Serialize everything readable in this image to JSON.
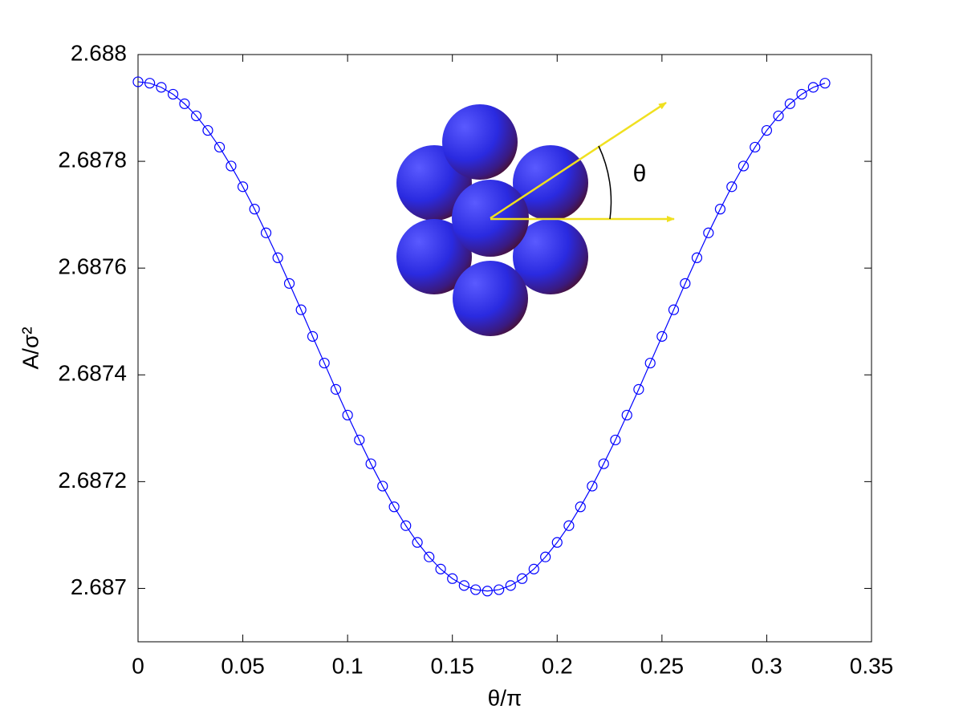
{
  "chart_data": {
    "type": "line",
    "xlabel": "θ/π",
    "ylabel": "A/σ²",
    "annotation": "θ",
    "color": "#0000ff",
    "marker": "circle",
    "xlim": [
      0,
      0.35
    ],
    "xticks": [
      0,
      0.05,
      0.1,
      0.15,
      0.2,
      0.25,
      0.3,
      0.35
    ],
    "ylim": [
      2.6869,
      2.688
    ],
    "yticks": [
      2.687,
      2.6872,
      2.6874,
      2.6876,
      2.6878,
      2.688
    ],
    "x": [
      0,
      0.0056,
      0.0111,
      0.0167,
      0.0222,
      0.0278,
      0.0333,
      0.0389,
      0.0444,
      0.05,
      0.0556,
      0.0611,
      0.0667,
      0.0722,
      0.0778,
      0.0833,
      0.0889,
      0.0944,
      0.1,
      0.1056,
      0.1111,
      0.1167,
      0.1222,
      0.1278,
      0.1333,
      0.1389,
      0.1444,
      0.15,
      0.1556,
      0.1611,
      0.1667,
      0.1722,
      0.1778,
      0.1833,
      0.1889,
      0.1944,
      0.2,
      0.2056,
      0.2111,
      0.2167,
      0.2222,
      0.2278,
      0.2333,
      0.2389,
      0.2444,
      0.25,
      0.2556,
      0.2611,
      0.2667,
      0.2722,
      0.2778,
      0.2833,
      0.2889,
      0.2944,
      0.3,
      0.3056,
      0.3111,
      0.3167,
      0.3222,
      0.3278
    ],
    "values": [
      2.687949,
      2.6879464,
      2.6879386,
      2.6879257,
      2.6879078,
      2.6878851,
      2.6878579,
      2.6878265,
      2.6877912,
      2.6877524,
      2.6877105,
      2.687666,
      2.6876194,
      2.6875712,
      2.6875219,
      2.687472,
      2.6874221,
      2.6873728,
      2.6873246,
      2.687278,
      2.6872335,
      2.6871916,
      2.6871528,
      2.6871175,
      2.6870861,
      2.6870589,
      2.6870362,
      2.6870183,
      2.6870054,
      2.6869976,
      2.686995,
      2.6869976,
      2.6870054,
      2.6870183,
      2.6870362,
      2.6870589,
      2.6870861,
      2.6871175,
      2.6871528,
      2.6871916,
      2.6872335,
      2.687278,
      2.6873246,
      2.6873728,
      2.6874221,
      2.687472,
      2.6875219,
      2.6875712,
      2.6876194,
      2.687666,
      2.6877105,
      2.6877524,
      2.6877912,
      2.6878265,
      2.6878579,
      2.6878851,
      2.6879078,
      2.6879257,
      2.6879386,
      2.6879464
    ]
  }
}
